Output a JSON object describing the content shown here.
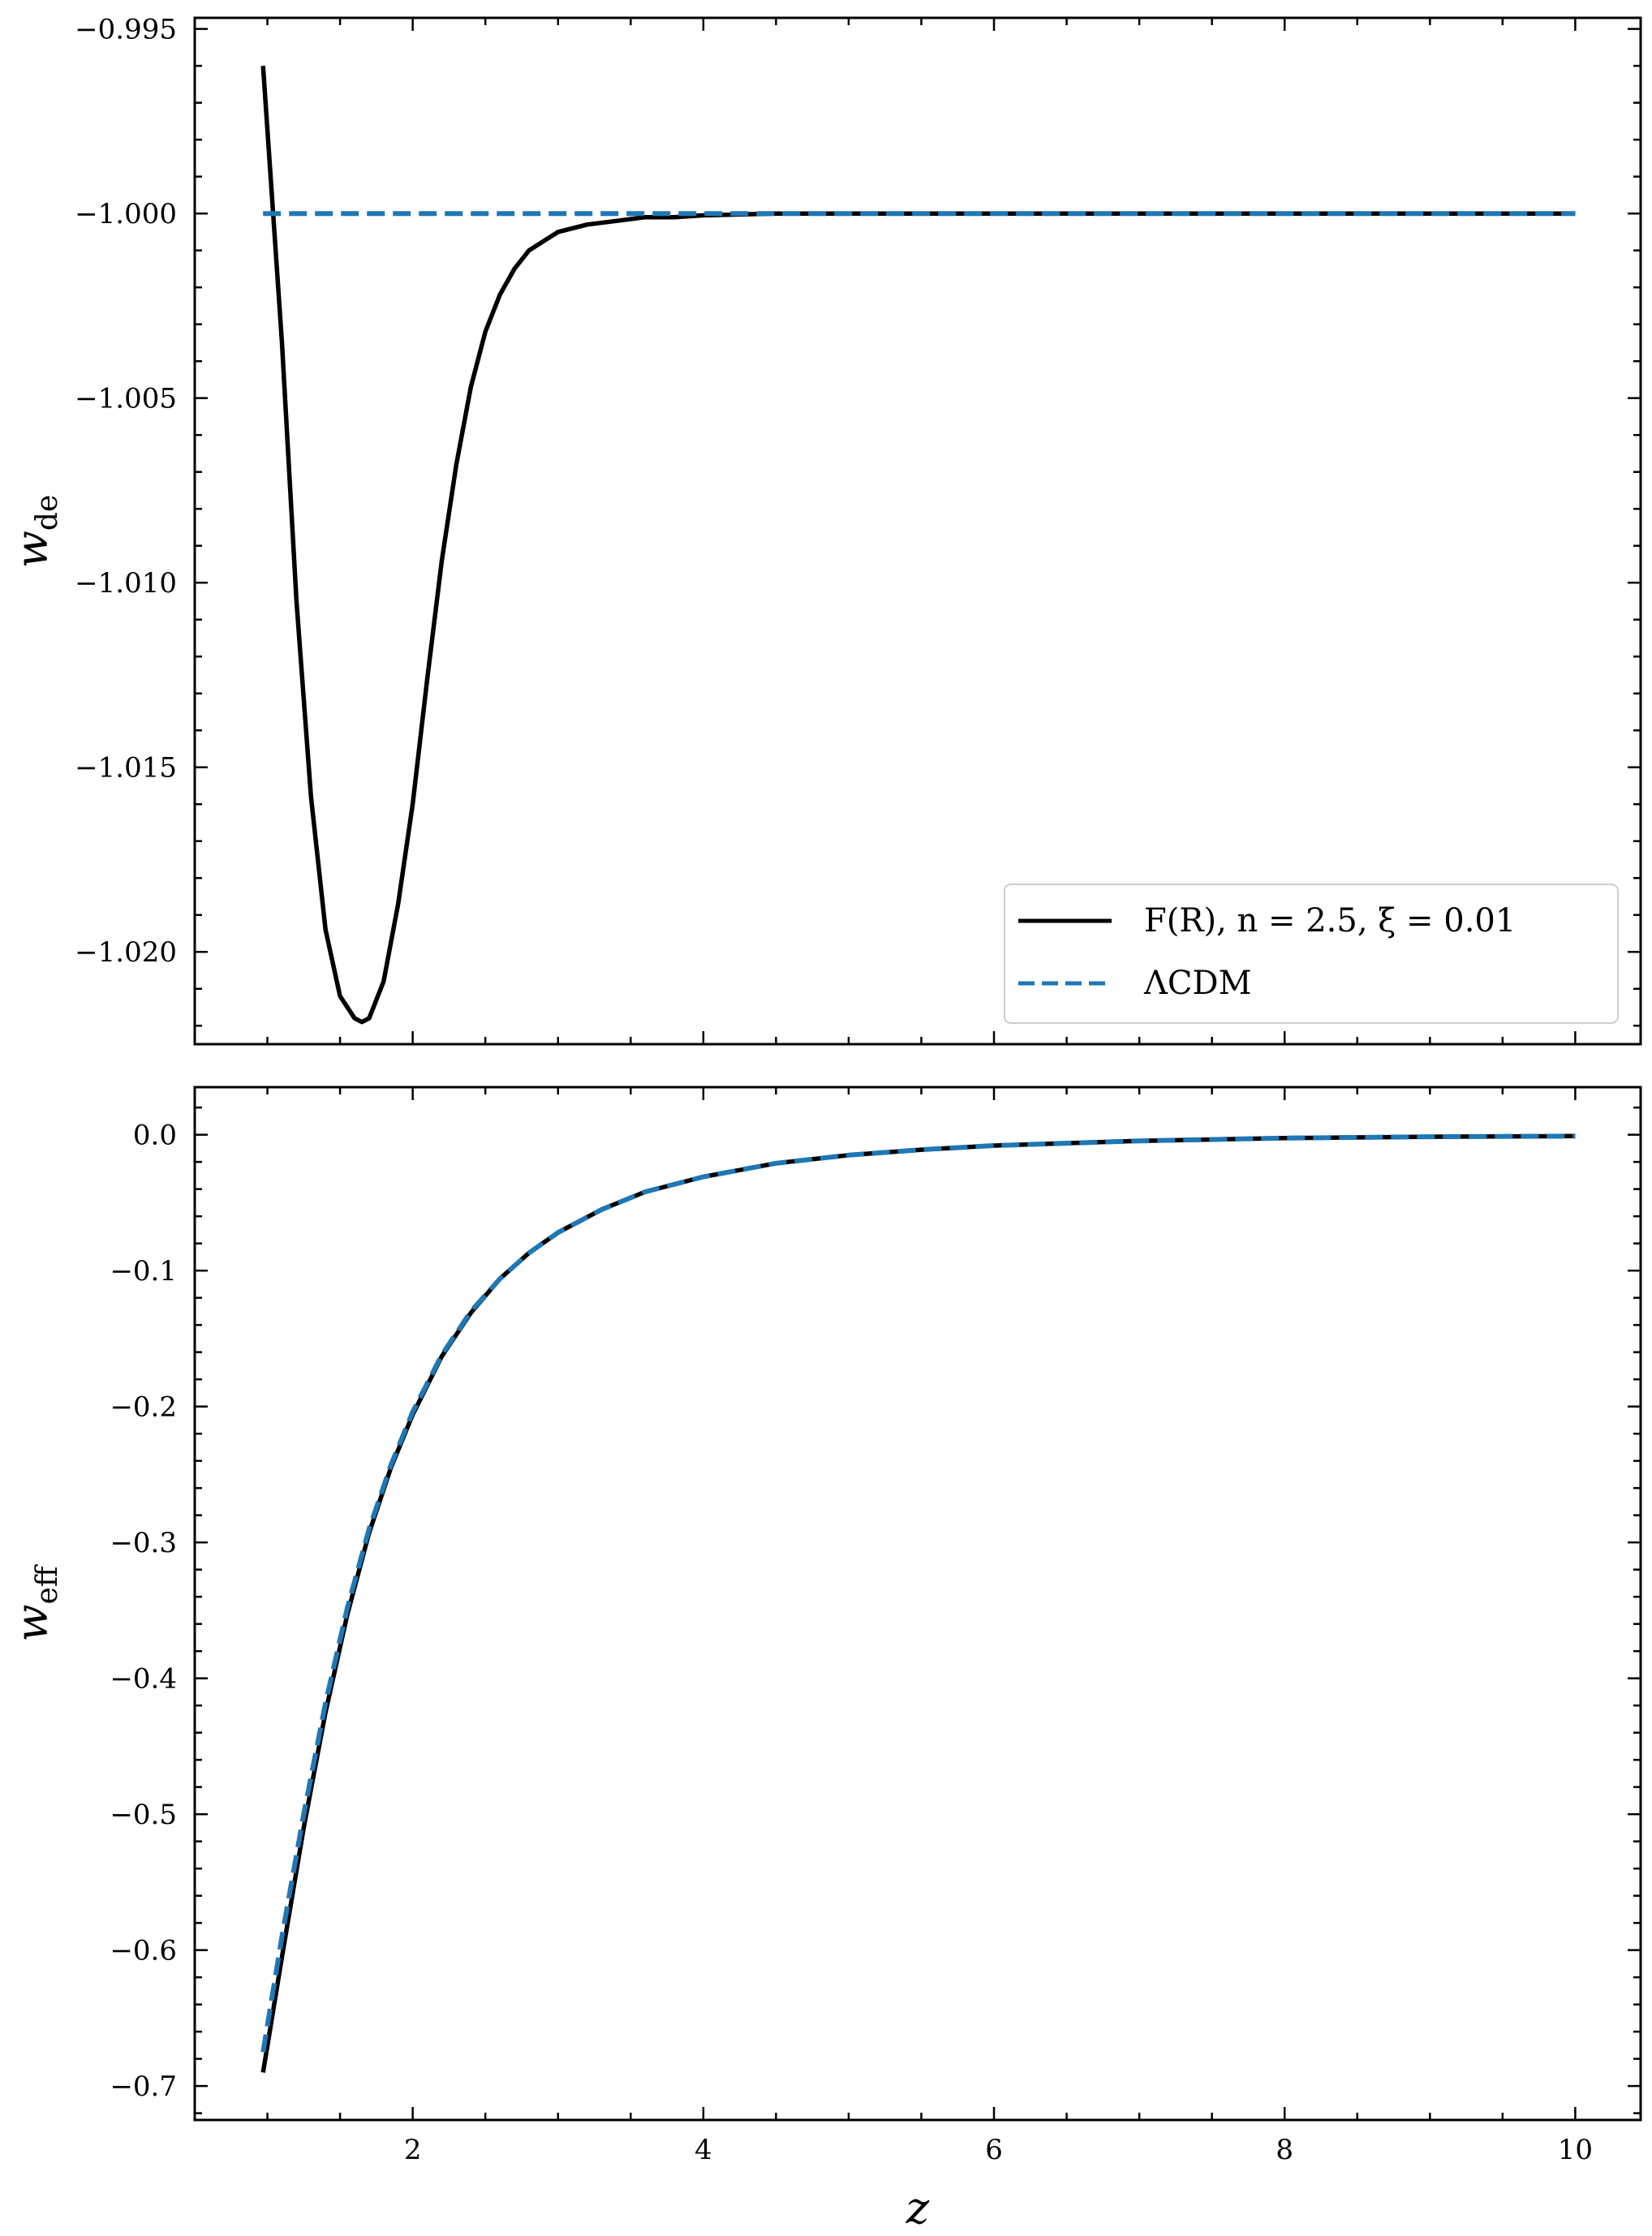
{
  "chart_data": [
    {
      "type": "line",
      "panel": "top",
      "ylabel": "w",
      "ylabel_sub": "de",
      "xlim": [
        0.5,
        10.45
      ],
      "ylim": [
        -1.0225,
        -0.9947
      ],
      "xticks": [
        2,
        4,
        6,
        8,
        10
      ],
      "yticks": [
        -0.995,
        -1.0,
        -1.005,
        -1.01,
        -1.015,
        -1.02
      ],
      "ytick_labels": [
        "−0.995",
        "−1.000",
        "−1.005",
        "−1.010",
        "−1.015",
        "−1.020"
      ],
      "grid": false,
      "legend_position": "lower right",
      "series": [
        {
          "name": "F(R), n = 2.5, ξ = 0.01",
          "style": "solid",
          "color": "#000000",
          "x": [
            0.97,
            1.1,
            1.2,
            1.3,
            1.4,
            1.5,
            1.6,
            1.65,
            1.7,
            1.8,
            1.9,
            2.0,
            2.1,
            2.2,
            2.3,
            2.4,
            2.5,
            2.6,
            2.7,
            2.8,
            3.0,
            3.2,
            3.4,
            3.6,
            3.8,
            4.0,
            4.5,
            5.0,
            6.0,
            8.0,
            10.0
          ],
          "y": [
            -0.996,
            -1.0035,
            -1.0105,
            -1.0158,
            -1.0194,
            -1.0212,
            -1.0218,
            -1.0219,
            -1.0218,
            -1.0208,
            -1.0187,
            -1.016,
            -1.0126,
            -1.0094,
            -1.0068,
            -1.0047,
            -1.0032,
            -1.0022,
            -1.0015,
            -1.001,
            -1.0005,
            -1.0003,
            -1.0002,
            -1.0001,
            -1.0001,
            -1.00005,
            -1.0,
            -1.0,
            -1.0,
            -1.0,
            -1.0
          ]
        },
        {
          "name": "ΛCDM",
          "style": "dashed",
          "color": "#1f77b4",
          "x": [
            0.97,
            10.0
          ],
          "y": [
            -1.0,
            -1.0
          ]
        }
      ]
    },
    {
      "type": "line",
      "panel": "bottom",
      "ylabel": "w",
      "ylabel_sub": "eff",
      "xlabel": "z",
      "xlim": [
        0.5,
        10.45
      ],
      "ylim": [
        -0.725,
        0.035
      ],
      "xticks": [
        2,
        4,
        6,
        8,
        10
      ],
      "xtick_labels": [
        "2",
        "4",
        "6",
        "8",
        "10"
      ],
      "yticks": [
        0.0,
        -0.1,
        -0.2,
        -0.3,
        -0.4,
        -0.5,
        -0.6,
        -0.7
      ],
      "ytick_labels": [
        "0.0",
        "−0.1",
        "−0.2",
        "−0.3",
        "−0.4",
        "−0.5",
        "−0.6",
        "−0.7"
      ],
      "grid": false,
      "series": [
        {
          "name": "F(R), n = 2.5, ξ = 0.01",
          "style": "solid",
          "color": "#000000",
          "x": [
            0.97,
            1.1,
            1.25,
            1.4,
            1.55,
            1.7,
            1.85,
            2.0,
            2.2,
            2.4,
            2.6,
            2.8,
            3.0,
            3.3,
            3.6,
            4.0,
            4.5,
            5.0,
            5.5,
            6.0,
            7.0,
            8.0,
            9.0,
            10.0
          ],
          "y": [
            -0.69,
            -0.605,
            -0.51,
            -0.425,
            -0.353,
            -0.293,
            -0.245,
            -0.206,
            -0.163,
            -0.131,
            -0.106,
            -0.087,
            -0.072,
            -0.055,
            -0.042,
            -0.031,
            -0.021,
            -0.015,
            -0.011,
            -0.008,
            -0.0045,
            -0.0025,
            -0.0015,
            -0.001
          ]
        },
        {
          "name": "ΛCDM",
          "style": "dashed",
          "color": "#1f77b4",
          "x": [
            0.97,
            1.1,
            1.25,
            1.4,
            1.55,
            1.7,
            1.85,
            2.0,
            2.2,
            2.4,
            2.6,
            2.8,
            3.0,
            3.3,
            3.6,
            4.0,
            4.5,
            5.0,
            5.5,
            6.0,
            7.0,
            8.0,
            9.0,
            10.0
          ],
          "y": [
            -0.675,
            -0.59,
            -0.5,
            -0.418,
            -0.348,
            -0.29,
            -0.243,
            -0.204,
            -0.162,
            -0.13,
            -0.106,
            -0.087,
            -0.072,
            -0.055,
            -0.042,
            -0.031,
            -0.021,
            -0.015,
            -0.011,
            -0.008,
            -0.0045,
            -0.0025,
            -0.0015,
            -0.001
          ]
        }
      ]
    }
  ]
}
